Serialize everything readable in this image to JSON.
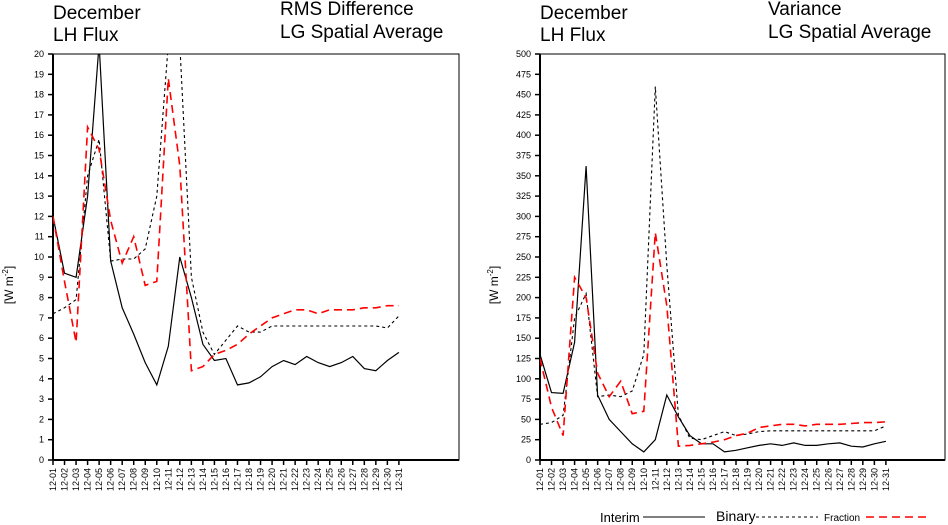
{
  "legend": {
    "items": [
      {
        "name": "Interim",
        "style": "solid",
        "color": "#000000"
      },
      {
        "name": "Binary",
        "style": "dotted",
        "color": "#000000"
      },
      {
        "name": "Fraction",
        "style": "dashed",
        "color": "#ff0000"
      }
    ]
  },
  "chart_data": [
    {
      "type": "line",
      "title_left": [
        "December",
        "LH Flux"
      ],
      "title_right": [
        "RMS Difference",
        "LG Spatial Average"
      ],
      "xlabel": "",
      "ylabel": "[W m-2]",
      "ylim": [
        0,
        20
      ],
      "yticks": [
        0,
        1,
        2,
        3,
        4,
        5,
        6,
        7,
        8,
        9,
        10,
        11,
        12,
        13,
        14,
        15,
        16,
        17,
        18,
        19,
        20
      ],
      "categories": [
        "12-01",
        "12-02",
        "12-03",
        "12-04",
        "12-05",
        "12-06",
        "12-07",
        "12-08",
        "12-09",
        "12-10",
        "12-11",
        "12-12",
        "12-13",
        "12-14",
        "12-15",
        "12-16",
        "12-17",
        "12-18",
        "12-19",
        "12-20",
        "12-21",
        "12-22",
        "12-23",
        "12-24",
        "12-25",
        "12-26",
        "12-27",
        "12-28",
        "12-29",
        "12-30",
        "12-31"
      ],
      "series": [
        {
          "name": "Interim",
          "values": [
            12.0,
            9.2,
            9.0,
            13.0,
            20.5,
            9.8,
            7.5,
            6.2,
            4.8,
            3.7,
            5.6,
            10.0,
            8.0,
            5.7,
            4.9,
            5.0,
            3.7,
            3.8,
            4.1,
            4.6,
            4.9,
            4.7,
            5.1,
            4.8,
            4.6,
            4.8,
            5.1,
            4.5,
            4.4,
            4.9,
            5.3
          ]
        },
        {
          "name": "Binary",
          "values": [
            7.2,
            7.5,
            7.9,
            14.0,
            15.8,
            9.8,
            9.9,
            9.9,
            10.4,
            13.0,
            20.5,
            20.5,
            9.0,
            6.3,
            5.2,
            5.9,
            6.6,
            6.3,
            6.3,
            6.6,
            6.6,
            6.6,
            6.6,
            6.6,
            6.6,
            6.6,
            6.6,
            6.6,
            6.6,
            6.5,
            7.1
          ]
        },
        {
          "name": "Fraction",
          "values": [
            12.0,
            8.8,
            5.8,
            16.4,
            15.3,
            11.8,
            9.7,
            11.0,
            8.6,
            8.8,
            18.8,
            14.5,
            4.4,
            4.6,
            5.2,
            5.4,
            5.7,
            6.2,
            6.6,
            7.0,
            7.2,
            7.4,
            7.4,
            7.2,
            7.4,
            7.4,
            7.4,
            7.5,
            7.5,
            7.6,
            7.6
          ]
        }
      ]
    },
    {
      "type": "line",
      "title_left": [
        "December",
        "LH Flux"
      ],
      "title_right": [
        "Variance",
        "LG Spatial Average"
      ],
      "xlabel": "",
      "ylabel": "[W m-2]",
      "ylim": [
        0,
        500
      ],
      "yticks": [
        0,
        25,
        50,
        75,
        100,
        125,
        150,
        175,
        200,
        225,
        250,
        275,
        300,
        325,
        350,
        375,
        400,
        425,
        450,
        475,
        500
      ],
      "categories": [
        "12-01",
        "12-02",
        "12-03",
        "12-04",
        "12-05",
        "12-06",
        "12-07",
        "12-08",
        "12-09",
        "12-10",
        "12-11",
        "12-12",
        "12-13",
        "12-14",
        "12-15",
        "12-16",
        "12-17",
        "12-18",
        "12-19",
        "12-20",
        "12-21",
        "12-22",
        "12-23",
        "12-24",
        "12-25",
        "12-26",
        "12-27",
        "12-28",
        "12-29",
        "12-30",
        "12-31"
      ],
      "series": [
        {
          "name": "Interim",
          "values": [
            130,
            83,
            82,
            145,
            362,
            80,
            50,
            35,
            20,
            10,
            25,
            80,
            53,
            30,
            20,
            20,
            10,
            12,
            15,
            18,
            20,
            18,
            21,
            18,
            18,
            20,
            21,
            17,
            16,
            20,
            23
          ]
        },
        {
          "name": "Binary",
          "values": [
            44,
            46,
            55,
            175,
            205,
            78,
            80,
            78,
            85,
            130,
            460,
            240,
            55,
            27,
            25,
            30,
            35,
            30,
            32,
            35,
            36,
            36,
            36,
            36,
            36,
            36,
            36,
            36,
            36,
            36,
            42
          ]
        },
        {
          "name": "Fraction",
          "values": [
            125,
            65,
            30,
            225,
            200,
            107,
            78,
            97,
            57,
            60,
            280,
            190,
            17,
            18,
            20,
            22,
            25,
            30,
            33,
            40,
            42,
            44,
            44,
            42,
            44,
            44,
            44,
            45,
            46,
            46,
            47
          ]
        }
      ]
    }
  ]
}
